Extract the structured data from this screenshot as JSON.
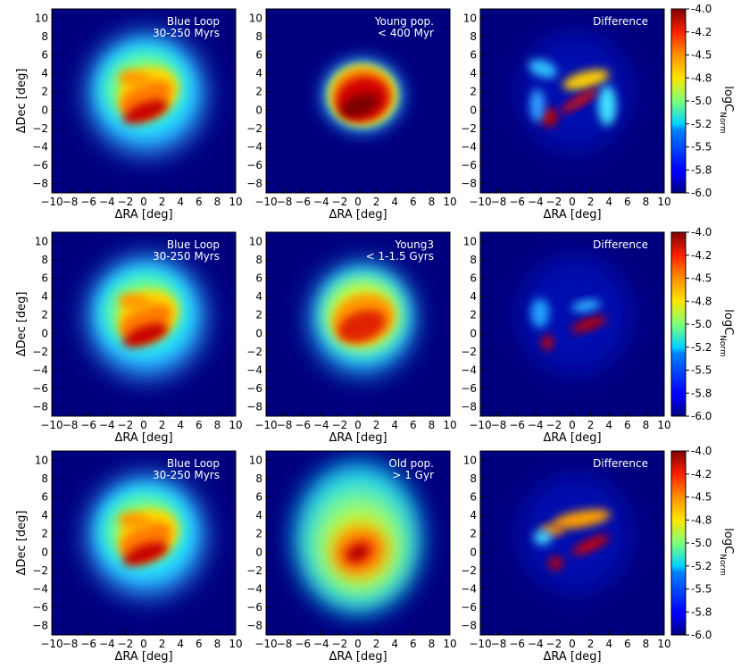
{
  "figure": {
    "axis_labels": {
      "x": "ΔRA [deg]",
      "y": "ΔDec [deg]"
    },
    "x_ticks": [
      -10,
      -8,
      -6,
      -4,
      -2,
      0,
      2,
      4,
      6,
      8,
      10
    ],
    "y_ticks": [
      -8,
      -6,
      -4,
      -2,
      0,
      2,
      4,
      6,
      8,
      10
    ],
    "colorbar": {
      "label": "logC",
      "label_sub": "Norm",
      "ticks": [
        "-4.0",
        "-4.2",
        "-4.5",
        "-4.8",
        "-5.0",
        "-5.2",
        "-5.5",
        "-5.8",
        "-6.0"
      ],
      "range": [
        -6.0,
        -4.0
      ],
      "colormap": "jet"
    },
    "background_color": "#00007f"
  },
  "chart_data": [
    {
      "type": "heatmap",
      "row": 1,
      "col": 1,
      "label_lines": [
        "Blue Loop",
        "30-250 Myrs"
      ],
      "xlabel": "ΔRA [deg]",
      "ylabel": "ΔDec [deg]",
      "xlim": [
        -10,
        10
      ],
      "ylim": [
        -9,
        11
      ]
    },
    {
      "type": "heatmap",
      "row": 1,
      "col": 2,
      "label_lines": [
        "Young pop.",
        "< 400 Myr"
      ],
      "xlabel": "ΔRA [deg]",
      "ylabel": "",
      "xlim": [
        -10,
        10
      ],
      "ylim": [
        -9,
        11
      ]
    },
    {
      "type": "heatmap",
      "row": 1,
      "col": 3,
      "label_lines": [
        "Difference"
      ],
      "xlabel": "ΔRA [deg]",
      "ylabel": "",
      "xlim": [
        -10,
        10
      ],
      "ylim": [
        -9,
        11
      ]
    },
    {
      "type": "heatmap",
      "row": 2,
      "col": 1,
      "label_lines": [
        "Blue Loop",
        "30-250 Myrs"
      ],
      "xlabel": "ΔRA [deg]",
      "ylabel": "ΔDec [deg]",
      "xlim": [
        -10,
        10
      ],
      "ylim": [
        -9,
        11
      ]
    },
    {
      "type": "heatmap",
      "row": 2,
      "col": 2,
      "label_lines": [
        "Young3",
        "< 1-1.5 Gyrs"
      ],
      "xlabel": "ΔRA [deg]",
      "ylabel": "",
      "xlim": [
        -10,
        10
      ],
      "ylim": [
        -9,
        11
      ]
    },
    {
      "type": "heatmap",
      "row": 2,
      "col": 3,
      "label_lines": [
        "Difference"
      ],
      "xlabel": "ΔRA [deg]",
      "ylabel": "",
      "xlim": [
        -10,
        10
      ],
      "ylim": [
        -9,
        11
      ]
    },
    {
      "type": "heatmap",
      "row": 3,
      "col": 1,
      "label_lines": [
        "Blue Loop",
        "30-250 Myrs"
      ],
      "xlabel": "ΔRA [deg]",
      "ylabel": "ΔDec [deg]",
      "xlim": [
        -10,
        10
      ],
      "ylim": [
        -9,
        11
      ]
    },
    {
      "type": "heatmap",
      "row": 3,
      "col": 2,
      "label_lines": [
        "Old pop.",
        "> 1 Gyr"
      ],
      "xlabel": "ΔRA [deg]",
      "ylabel": "",
      "xlim": [
        -10,
        10
      ],
      "ylim": [
        -9,
        11
      ]
    },
    {
      "type": "heatmap",
      "row": 3,
      "col": 3,
      "label_lines": [
        "Difference"
      ],
      "xlabel": "ΔRA [deg]",
      "ylabel": "",
      "xlim": [
        -10,
        10
      ],
      "ylim": [
        -9,
        11
      ]
    }
  ]
}
